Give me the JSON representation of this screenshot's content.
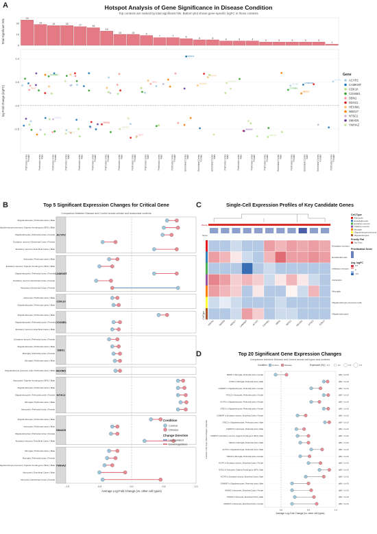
{
  "panelA": {
    "letter": "A",
    "title": "Hotspot Analysis of Gene Significance in Disease Condition",
    "subtitle": "Top contexts are ranked by total significant hits. Bottom plot shows gene-specific logFC in those contexts",
    "top_ylabel": "Total Significant Hits",
    "bottom_ylabel": "log-Fold Change (logFC)",
    "legend_title": "Gene",
    "genes": [
      "ACYP2",
      "CAMKMT",
      "CDK10",
      "COX6B1",
      "DBN1",
      "DDX21",
      "HEXIM1",
      "MED27",
      "NT5C2",
      "SMAD5",
      "YWHAZ"
    ],
    "gene_colors": [
      "#a6cee3",
      "#1f78b4",
      "#b2df8a",
      "#33a02c",
      "#fb9a99",
      "#e31a1c",
      "#fdbf6f",
      "#ff7f00",
      "#cab2d6",
      "#6a3d9a",
      "#c8e6a0"
    ],
    "contexts": [
      "Prefrontal cortex | Female",
      "Prefrontal cortex | Male",
      "Prefrontal cortex | Female",
      "Prefrontal cortex | Male",
      "Prefrontal cortex | Male",
      "Prefrontal cortex | Female",
      "Prefrontal cortex | Female",
      "Prefrontal cortex | Male",
      "Prefrontal cortex | Female",
      "Prefrontal cortex | Male",
      "Prefrontal cortex | Male",
      "Prefrontal cortex | Female",
      "Entorhinal Cortex | Male",
      "Entorhinal Cortex | Female",
      "Entorhinal Cortex | Male",
      "Prefrontal cortex | Male",
      "Prefrontal cortex | Male",
      "Prefrontal cortex | Female",
      "Prefrontal cortex | Female",
      "Entorhinal Cortex | Male",
      "Prefrontal cortex | Female",
      "Entorhinal Cortex | Male",
      "Entorhinal Cortex | Female",
      "Prefrontal cortex | Female"
    ],
    "top_hits": [
      23,
      19,
      18,
      18,
      17,
      16,
      13,
      10,
      10,
      9,
      7,
      7,
      6,
      5,
      5,
      4,
      4,
      4,
      3,
      3,
      3,
      3,
      3,
      1
    ],
    "top_ylim": [
      0,
      25
    ],
    "bottom_ylim": [
      -1.0,
      1.2
    ],
    "bottom_yticks": [
      -0.5,
      0.0,
      0.5,
      1.0
    ]
  },
  "panelB": {
    "letter": "B",
    "title": "Top 5 Significant Expression Changes for Critical Gene",
    "subtitle": "Comparison between Disease and Control across cellular and anatomical contexts",
    "xlabel": "Average Log-Fold Change (vs. other cell types)",
    "legend_condition_title": "Condition",
    "legend_condition": [
      "Control",
      "Disease"
    ],
    "legend_direction_title": "Change Direction",
    "legend_direction": [
      "Upregulated",
      "Downregulated"
    ],
    "groups": [
      {
        "gene": "ACYP2",
        "rows": [
          {
            "label": "Oligodendrocytes | Prefrontal cortex | Male",
            "c": 0.55,
            "d": 0.7
          },
          {
            "label": "Oligodendrocyte precursor | Superior frontal gyrus (SFG) | Male",
            "c": 0.5,
            "d": 0.72
          },
          {
            "label": "Oligodendrocytes | Prefrontal cortex | Female",
            "c": 0.48,
            "d": 0.62
          },
          {
            "label": "Excitatory neurons | Entorhinal Cortex | Female",
            "c": -0.45,
            "d": -0.25
          },
          {
            "label": "Excitatory neurons | Entorhinal Cortex | Male",
            "c": 0.35,
            "d": 0.7
          }
        ]
      },
      {
        "gene": "CAMKMT",
        "rows": [
          {
            "label": "Astrocytes | Prefrontal cortex | Male",
            "c": -0.35,
            "d": -0.22
          },
          {
            "label": "Excitatory neurons | Superior frontal gyrus (SFG) | Male",
            "c": -0.5,
            "d": -0.3
          },
          {
            "label": "Oligodendrocytes | Prefrontal cortex | Female",
            "c": 0.35,
            "d": 0.7
          },
          {
            "label": "Excitatory neurons | Entorhinal Cortex | Female",
            "c": -0.55,
            "d": -0.32
          },
          {
            "label": "Astrocytes | Entorhinal Cortex | Female",
            "c": 0.72,
            "d": -0.3
          }
        ]
      },
      {
        "gene": "CDK10",
        "rows": [
          {
            "label": "Astrocytes | Prefrontal cortex | Male",
            "c": -0.3,
            "d": -0.22
          },
          {
            "label": "Oligodendrocytes | Prefrontal cortex | Male",
            "c": -0.28,
            "d": -0.2
          }
        ]
      },
      {
        "gene": "COX6B1",
        "rows": [
          {
            "label": "Oligodendrocytes | Prefrontal cortex | Male",
            "c": 0.42,
            "d": 0.55
          },
          {
            "label": "Oligodendrocytes | Prefrontal cortex | Female",
            "c": -0.28,
            "d": -0.18
          },
          {
            "label": "Excitatory neurons | Entorhinal Cortex | Male",
            "c": -0.3,
            "d": -0.2
          }
        ]
      },
      {
        "gene": "DBN1",
        "rows": [
          {
            "label": "Excitatory neurons | Prefrontal cortex | Female",
            "c": -0.35,
            "d": -0.22
          },
          {
            "label": "Oligodendrocytes | Prefrontal cortex | Male",
            "c": -0.3,
            "d": -0.2
          },
          {
            "label": "Microglia | Prefrontal cortex | Female",
            "c": -0.28,
            "d": -0.18
          },
          {
            "label": "Microglia | Prefrontal cortex | Male",
            "c": -0.26,
            "d": -0.18
          }
        ]
      },
      {
        "gene": "HEXIM1",
        "rows": [
          {
            "label": "Oligodendrocyte precursor cells | Prefrontal cortex | Male",
            "c": -0.25,
            "d": -0.18
          }
        ]
      },
      {
        "gene": "NT5C2",
        "rows": [
          {
            "label": "Astrocytes | Superior frontal gyrus (SFG) | Male",
            "c": 0.72,
            "d": 0.8
          },
          {
            "label": "Oligodendrocytes | Prefrontal cortex | Male",
            "c": 0.72,
            "d": 0.82
          },
          {
            "label": "Oligodendrocytes | Prefrontal cortex | Female",
            "c": 0.72,
            "d": 0.84
          },
          {
            "label": "Microglia | Prefrontal cortex | Male",
            "c": 0.76,
            "d": 0.85
          },
          {
            "label": "Astrocytes | Prefrontal cortex | Female",
            "c": 0.72,
            "d": 0.84
          }
        ]
      },
      {
        "gene": "SMAD5",
        "rows": [
          {
            "label": "Oligodendrocytes | Prefrontal cortex | Male",
            "c": 0.3,
            "d": 0.45
          },
          {
            "label": "Astrocytes | Prefrontal cortex | Male",
            "c": -0.3,
            "d": -0.22
          },
          {
            "label": "Oligodendrocytes | Prefrontal cortex | Female",
            "c": -0.32,
            "d": -0.22
          },
          {
            "label": "Excitatory neurons | Entorhinal Cortex | Male",
            "c": 0.2,
            "d": 0.65
          }
        ]
      },
      {
        "gene": "YWHAZ",
        "rows": [
          {
            "label": "Microglia | Prefrontal cortex | Male",
            "c": -0.35,
            "d": -0.22
          },
          {
            "label": "Microglia | Prefrontal cortex | Female",
            "c": -0.38,
            "d": -0.25
          },
          {
            "label": "Oligodendrocyte precursor | Superior frontal gyrus (SFG) | Male",
            "c": -0.42,
            "d": -0.3
          },
          {
            "label": "Astrocytes | Entorhinal Cortex | Male",
            "c": -0.5,
            "d": -0.1
          },
          {
            "label": "Astrocytes | Entorhinal Cortex | Female",
            "c": -0.45,
            "d": 0.45
          }
        ]
      }
    ]
  },
  "panelC": {
    "letter": "C",
    "title": "Single-Cell Expression Profiles of Key Candidate Genes",
    "legend_cell_type_title": "Cell Type",
    "cell_types": [
      "Astrocytes",
      "Endothelial cells",
      "Excitatory neurons",
      "Inhibitory neurons",
      "Microglia",
      "Oligodendrocyte precursor cells",
      "Oligodendrocytes"
    ],
    "cell_type_colors": [
      "#e41a1c",
      "#377eb8",
      "#4daf4a",
      "#984ea3",
      "#ff7f00",
      "#ffff33",
      "#a65628"
    ],
    "legend_priority_title": "Priority Flat",
    "legend_priority": [
      "Top 5 hits"
    ],
    "legend_score_title": "Prioritization Score",
    "legend_logfc_title": "Avg. logFC",
    "logfc_ticks": [
      "0.5",
      "0",
      "-0.5"
    ],
    "row_labels": [
      "Excitatory neurons",
      "Endothelial cells",
      "Inhibitory neurons",
      "Astrocytes",
      "Microglia",
      "Oligodendrocyte precursor cells",
      "Oligodendrocytes"
    ],
    "col_labels": [
      "YWHAZ",
      "SMAD5",
      "MED27",
      "CAMKMT",
      "ACYP2",
      "COX6B1",
      "DBN1",
      "DDX21",
      "HEXIM1",
      "NT5C2",
      "CDK10"
    ],
    "side_label_top": "Evidence Score",
    "side_label_left": "CellType",
    "top_bar_label": "Priority",
    "matrix": [
      [
        -0.3,
        -0.3,
        -0.2,
        -0.3,
        -0.3,
        0.4,
        0.3,
        0.4,
        0.35,
        0.4,
        0.35
      ],
      [
        0.4,
        0.3,
        0.1,
        -0.2,
        -0.3,
        0.3,
        0.6,
        0.4,
        0.4,
        0.45,
        0.4
      ],
      [
        -0.3,
        -0.3,
        -0.3,
        -0.8,
        -0.3,
        -0.2,
        -0.3,
        -0.3,
        -0.3,
        -0.3,
        -0.3
      ],
      [
        0.5,
        0.4,
        0.2,
        0.3,
        0.2,
        -0.2,
        0.1,
        0.3,
        0.1,
        -0.2,
        -0.3
      ],
      [
        0.4,
        0.3,
        0.2,
        -0.3,
        0.1,
        -0.3,
        -0.3,
        0.05,
        -0.2,
        0.3,
        -0.3
      ],
      [
        -0.2,
        -0.1,
        -0.2,
        -0.3,
        -0.3,
        -0.3,
        -0.2,
        -0.3,
        -0.3,
        -0.3,
        -0.3
      ],
      [
        -0.3,
        -0.3,
        -0.2,
        0.4,
        0.2,
        -0.3,
        -0.2,
        -0.2,
        -0.3,
        -0.3,
        -0.3
      ]
    ]
  },
  "panelD": {
    "letter": "D",
    "title": "Top 20 Significant Gene Expression Changes",
    "subtitle": "Comparison between Disease and Control across cell types and contexts",
    "legend_condition_title": "Condition",
    "legend_condition": [
      "Control",
      "Disease"
    ],
    "legend_expr_title": "Expressed (%)",
    "legend_expr": [
      "0.1",
      "0.2",
      "0.3",
      "0.4"
    ],
    "xlabel": "Average Log-Fold Change (vs. other cell types)",
    "ylabel": "Context: Cell Type | Brain Region | Gender",
    "rows": [
      {
        "label": "MED27 in Microglia, Prefrontal cortex, Female",
        "c": -0.1,
        "d": 0.1,
        "p": "pBH = 1e-03"
      },
      {
        "label": "NT5C2 in Microglia, Prefrontal cortex, Male",
        "c": 0.78,
        "d": 0.85,
        "p": "pBH < 1e-10"
      },
      {
        "label": "CAMKMT in Oligodendrocytes, Prefrontal cortex, Female",
        "c": 0.55,
        "d": 0.72,
        "p": "pBH < 1e-10"
      },
      {
        "label": "NT5C2 in Astrocytes, Prefrontal cortex, Female",
        "c": 0.78,
        "d": 0.86,
        "p": "pBH < 1e-10"
      },
      {
        "label": "ACYP2 in Oligodendrocytes, Prefrontal cortex, Female",
        "c": 0.55,
        "d": 0.7,
        "p": "pBH < 1e-10"
      },
      {
        "label": "NT5C2 in Oligodendrocytes, Prefrontal cortex, Female",
        "c": 0.78,
        "d": 0.86,
        "p": "pBH < 1e-10"
      },
      {
        "label": "CAMKMT in Excitatory neurons, Entorhinal Cortex, Female",
        "c": 0.3,
        "d": 0.45,
        "p": "pBH < 1e-10"
      },
      {
        "label": "NT5C2 in Oligodendrocytes, Prefrontal cortex, Male",
        "c": 0.8,
        "d": 0.88,
        "p": "pBH < 1e-10"
      },
      {
        "label": "CAMKMT in Astrocytes, Prefrontal cortex, Male",
        "c": 0.28,
        "d": 0.42,
        "p": "pBH < 1e-10"
      },
      {
        "label": "CAMKMT in Excitatory neurons, Superior frontal gyrus (SFG), Male",
        "c": 0.3,
        "d": 0.5,
        "p": "pBH < 1e-10"
      },
      {
        "label": "YWHAZ in Microglia, Prefrontal cortex, Male",
        "c": 0.35,
        "d": 0.5,
        "p": "pBH < 1e-10"
      },
      {
        "label": "ACYP2 in Oligodendrocytes, Prefrontal cortex, Male",
        "c": 0.55,
        "d": 0.75,
        "p": "pBH < 1e-10"
      },
      {
        "label": "YWHAZ in Microglia, Prefrontal cortex, Female",
        "c": 0.35,
        "d": 0.52,
        "p": "pBH < 1e-10"
      },
      {
        "label": "ACYP2 in Excitatory neurons, Entorhinal Cortex, Female",
        "c": 0.5,
        "d": 0.72,
        "p": "pBH < 1e-10"
      },
      {
        "label": "NT5C2 in Astrocytes, Superior frontal gyrus (SFG), Male",
        "c": 0.7,
        "d": 0.88,
        "p": "pBH < 1e-10"
      },
      {
        "label": "ACYP2 in Excitatory neurons, Entorhinal Cortex, Male",
        "c": 0.45,
        "d": 0.78,
        "p": "pBH < 1e-10"
      },
      {
        "label": "CAMKMT in Oligodendrocytes, Prefrontal cortex, Male",
        "c": 0.2,
        "d": 0.5,
        "p": "pBH < 1e-10"
      },
      {
        "label": "YWHAZ in Astrocytes, Entorhinal Cortex, Female",
        "c": 0.2,
        "d": 0.55,
        "p": "pBH < 1e-10"
      },
      {
        "label": "YWHAZ in Astrocytes, Entorhinal Cortex, Male",
        "c": 0.25,
        "d": 0.6,
        "p": "pBH < 1e-10"
      },
      {
        "label": "CAMKMT in Astrocytes, Entorhinal Cortex, Female",
        "c": 0.2,
        "d": 0.65,
        "p": "pBH < 1e-10"
      }
    ]
  }
}
